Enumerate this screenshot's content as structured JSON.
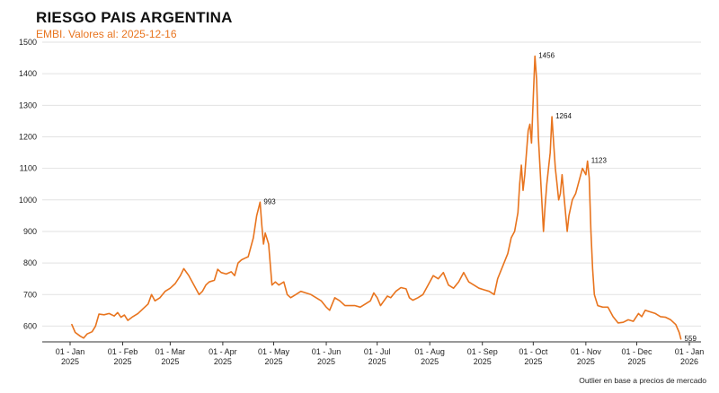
{
  "title": "RIESGO PAIS ARGENTINA",
  "subtitle": "EMBI. Valores al: 2025-12-16",
  "footnote": "Outlier en base a precios de mercado",
  "colors": {
    "line": "#e8741e",
    "grid": "#e2e2e2",
    "axis": "#333333"
  },
  "chart_data": {
    "type": "line",
    "title": "RIESGO PAIS ARGENTINA",
    "subtitle": "EMBI. Valores al: 2025-12-16",
    "xlabel": "",
    "ylabel": "",
    "ylim": [
      550,
      1500
    ],
    "xlim": [
      "2025-01-01",
      "2026-01-01"
    ],
    "grid": "horizontal",
    "yticks": [
      "600",
      "700",
      "800",
      "900",
      "1000",
      "1100",
      "1200",
      "1300",
      "1400",
      "1500"
    ],
    "xticks": [
      {
        "date": "2025-01-01",
        "label1": "01 - Jan",
        "label2": "2025"
      },
      {
        "date": "2025-02-01",
        "label1": "01 - Feb",
        "label2": "2025"
      },
      {
        "date": "2025-03-01",
        "label1": "01 - Mar",
        "label2": "2025"
      },
      {
        "date": "2025-04-01",
        "label1": "01 - Apr",
        "label2": "2025"
      },
      {
        "date": "2025-05-01",
        "label1": "01 - May",
        "label2": "2025"
      },
      {
        "date": "2025-06-01",
        "label1": "01 - Jun",
        "label2": "2025"
      },
      {
        "date": "2025-07-01",
        "label1": "01 - Jul",
        "label2": "2025"
      },
      {
        "date": "2025-08-01",
        "label1": "01 - Aug",
        "label2": "2025"
      },
      {
        "date": "2025-09-01",
        "label1": "01 - Sep",
        "label2": "2025"
      },
      {
        "date": "2025-10-01",
        "label1": "01 - Oct",
        "label2": "2025"
      },
      {
        "date": "2025-11-01",
        "label1": "01 - Nov",
        "label2": "2025"
      },
      {
        "date": "2025-12-01",
        "label1": "01 - Dec",
        "label2": "2025"
      },
      {
        "date": "2026-01-01",
        "label1": "01 - Jan",
        "label2": "2026"
      }
    ],
    "series": [
      {
        "points": [
          [
            "2025-01-02",
            605
          ],
          [
            "2025-01-04",
            580
          ],
          [
            "2025-01-07",
            568
          ],
          [
            "2025-01-09",
            562
          ],
          [
            "2025-01-11",
            575
          ],
          [
            "2025-01-14",
            582
          ],
          [
            "2025-01-16",
            600
          ],
          [
            "2025-01-18",
            638
          ],
          [
            "2025-01-21",
            636
          ],
          [
            "2025-01-24",
            640
          ],
          [
            "2025-01-27",
            632
          ],
          [
            "2025-01-29",
            643
          ],
          [
            "2025-01-31",
            628
          ],
          [
            "2025-02-02",
            635
          ],
          [
            "2025-02-04",
            618
          ],
          [
            "2025-02-07",
            630
          ],
          [
            "2025-02-10",
            640
          ],
          [
            "2025-02-13",
            655
          ],
          [
            "2025-02-16",
            670
          ],
          [
            "2025-02-18",
            700
          ],
          [
            "2025-02-20",
            680
          ],
          [
            "2025-02-23",
            690
          ],
          [
            "2025-02-26",
            710
          ],
          [
            "2025-03-01",
            720
          ],
          [
            "2025-03-04",
            735
          ],
          [
            "2025-03-07",
            760
          ],
          [
            "2025-03-09",
            782
          ],
          [
            "2025-03-12",
            760
          ],
          [
            "2025-03-15",
            730
          ],
          [
            "2025-03-18",
            700
          ],
          [
            "2025-03-20",
            710
          ],
          [
            "2025-03-22",
            730
          ],
          [
            "2025-03-24",
            740
          ],
          [
            "2025-03-27",
            745
          ],
          [
            "2025-03-29",
            780
          ],
          [
            "2025-03-31",
            770
          ],
          [
            "2025-04-03",
            765
          ],
          [
            "2025-04-06",
            772
          ],
          [
            "2025-04-08",
            760
          ],
          [
            "2025-04-10",
            800
          ],
          [
            "2025-04-12",
            810
          ],
          [
            "2025-04-14",
            815
          ],
          [
            "2025-04-16",
            820
          ],
          [
            "2025-04-19",
            880
          ],
          [
            "2025-04-21",
            950
          ],
          [
            "2025-04-23",
            993
          ],
          [
            "2025-04-24",
            920
          ],
          [
            "2025-04-25",
            860
          ],
          [
            "2025-04-26",
            895
          ],
          [
            "2025-04-28",
            860
          ],
          [
            "2025-04-30",
            730
          ],
          [
            "2025-05-02",
            740
          ],
          [
            "2025-05-04",
            730
          ],
          [
            "2025-05-07",
            740
          ],
          [
            "2025-05-09",
            700
          ],
          [
            "2025-05-11",
            690
          ],
          [
            "2025-05-14",
            700
          ],
          [
            "2025-05-17",
            710
          ],
          [
            "2025-05-20",
            705
          ],
          [
            "2025-05-23",
            700
          ],
          [
            "2025-05-26",
            690
          ],
          [
            "2025-05-29",
            680
          ],
          [
            "2025-06-01",
            660
          ],
          [
            "2025-06-03",
            650
          ],
          [
            "2025-06-06",
            690
          ],
          [
            "2025-06-09",
            680
          ],
          [
            "2025-06-12",
            665
          ],
          [
            "2025-06-15",
            665
          ],
          [
            "2025-06-18",
            665
          ],
          [
            "2025-06-21",
            660
          ],
          [
            "2025-06-24",
            670
          ],
          [
            "2025-06-27",
            680
          ],
          [
            "2025-06-29",
            705
          ],
          [
            "2025-07-01",
            690
          ],
          [
            "2025-07-03",
            665
          ],
          [
            "2025-07-05",
            680
          ],
          [
            "2025-07-07",
            695
          ],
          [
            "2025-07-09",
            690
          ],
          [
            "2025-07-12",
            710
          ],
          [
            "2025-07-15",
            722
          ],
          [
            "2025-07-18",
            718
          ],
          [
            "2025-07-20",
            690
          ],
          [
            "2025-07-22",
            682
          ],
          [
            "2025-07-25",
            690
          ],
          [
            "2025-07-28",
            700
          ],
          [
            "2025-07-31",
            730
          ],
          [
            "2025-08-03",
            760
          ],
          [
            "2025-08-06",
            750
          ],
          [
            "2025-08-09",
            770
          ],
          [
            "2025-08-12",
            730
          ],
          [
            "2025-08-15",
            720
          ],
          [
            "2025-08-18",
            740
          ],
          [
            "2025-08-21",
            770
          ],
          [
            "2025-08-24",
            740
          ],
          [
            "2025-08-27",
            730
          ],
          [
            "2025-08-30",
            720
          ],
          [
            "2025-09-02",
            715
          ],
          [
            "2025-09-05",
            710
          ],
          [
            "2025-09-08",
            700
          ],
          [
            "2025-09-10",
            750
          ],
          [
            "2025-09-13",
            790
          ],
          [
            "2025-09-16",
            830
          ],
          [
            "2025-09-18",
            880
          ],
          [
            "2025-09-20",
            900
          ],
          [
            "2025-09-22",
            960
          ],
          [
            "2025-09-23",
            1050
          ],
          [
            "2025-09-24",
            1110
          ],
          [
            "2025-09-25",
            1030
          ],
          [
            "2025-09-26",
            1080
          ],
          [
            "2025-09-27",
            1150
          ],
          [
            "2025-09-28",
            1220
          ],
          [
            "2025-09-29",
            1240
          ],
          [
            "2025-09-30",
            1180
          ],
          [
            "2025-10-01",
            1320
          ],
          [
            "2025-10-02",
            1456
          ],
          [
            "2025-10-03",
            1380
          ],
          [
            "2025-10-04",
            1200
          ],
          [
            "2025-10-05",
            1100
          ],
          [
            "2025-10-06",
            1000
          ],
          [
            "2025-10-07",
            900
          ],
          [
            "2025-10-08",
            980
          ],
          [
            "2025-10-09",
            1050
          ],
          [
            "2025-10-10",
            1100
          ],
          [
            "2025-10-11",
            1150
          ],
          [
            "2025-10-12",
            1264
          ],
          [
            "2025-10-13",
            1180
          ],
          [
            "2025-10-14",
            1100
          ],
          [
            "2025-10-15",
            1050
          ],
          [
            "2025-10-16",
            1000
          ],
          [
            "2025-10-17",
            1020
          ],
          [
            "2025-10-18",
            1080
          ],
          [
            "2025-10-19",
            1020
          ],
          [
            "2025-10-20",
            960
          ],
          [
            "2025-10-21",
            900
          ],
          [
            "2025-10-22",
            950
          ],
          [
            "2025-10-24",
            1000
          ],
          [
            "2025-10-26",
            1020
          ],
          [
            "2025-10-28",
            1060
          ],
          [
            "2025-10-30",
            1100
          ],
          [
            "2025-11-01",
            1080
          ],
          [
            "2025-11-02",
            1123
          ],
          [
            "2025-11-03",
            1070
          ],
          [
            "2025-11-04",
            900
          ],
          [
            "2025-11-05",
            780
          ],
          [
            "2025-11-06",
            700
          ],
          [
            "2025-11-08",
            665
          ],
          [
            "2025-11-11",
            660
          ],
          [
            "2025-11-14",
            660
          ],
          [
            "2025-11-17",
            630
          ],
          [
            "2025-11-20",
            610
          ],
          [
            "2025-11-23",
            612
          ],
          [
            "2025-11-26",
            620
          ],
          [
            "2025-11-29",
            615
          ],
          [
            "2025-12-02",
            640
          ],
          [
            "2025-12-04",
            630
          ],
          [
            "2025-12-06",
            650
          ],
          [
            "2025-12-09",
            645
          ],
          [
            "2025-12-12",
            640
          ],
          [
            "2025-12-15",
            630
          ],
          [
            "2025-12-18",
            628
          ],
          [
            "2025-12-21",
            620
          ],
          [
            "2025-12-24",
            605
          ],
          [
            "2025-12-26",
            580
          ],
          [
            "2025-12-27",
            559
          ]
        ]
      }
    ],
    "annotations": [
      {
        "date": "2025-04-23",
        "value": 993,
        "label": "993"
      },
      {
        "date": "2025-10-02",
        "value": 1456,
        "label": "1456"
      },
      {
        "date": "2025-10-12",
        "value": 1264,
        "label": "1264"
      },
      {
        "date": "2025-11-02",
        "value": 1123,
        "label": "1123"
      },
      {
        "date": "2025-12-27",
        "value": 559,
        "label": "559"
      }
    ]
  }
}
